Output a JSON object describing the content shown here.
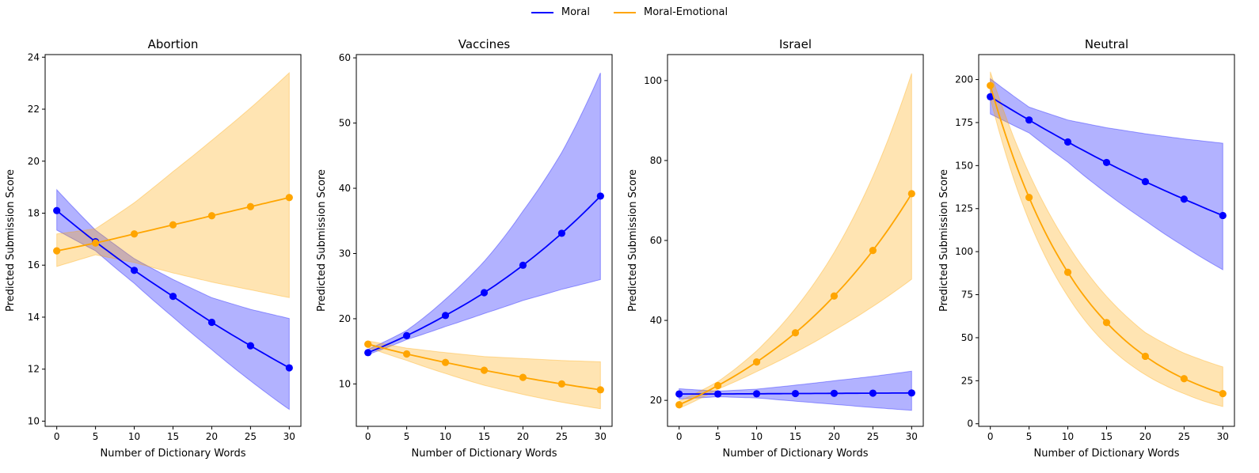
{
  "legend": {
    "items": [
      {
        "label": "Moral",
        "color": "#0000ff"
      },
      {
        "label": "Moral-Emotional",
        "color": "#ffa500"
      }
    ]
  },
  "colors": {
    "moral": "#0000ff",
    "moral_emotional": "#ffa500"
  },
  "chart_data": [
    {
      "type": "line",
      "title": "Abortion",
      "xlabel": "Number of Dictionary Words",
      "ylabel": "Predicted Submission Score",
      "xlim": [
        -1.5,
        31.5
      ],
      "ylim": [
        9.8,
        24.1
      ],
      "xticks": [
        0,
        5,
        10,
        15,
        20,
        25,
        30
      ],
      "yticks": [
        10,
        12,
        14,
        16,
        18,
        20,
        22,
        24
      ],
      "x": [
        0,
        5,
        10,
        15,
        20,
        25,
        30
      ],
      "series": [
        {
          "name": "Moral",
          "color": "#0000ff",
          "values": [
            18.1,
            16.9,
            15.8,
            14.8,
            13.8,
            12.9,
            12.05
          ],
          "lower": [
            17.35,
            16.55,
            15.3,
            14.0,
            12.75,
            11.55,
            10.45
          ],
          "upper": [
            18.9,
            17.35,
            16.25,
            15.45,
            14.75,
            14.3,
            13.95
          ]
        },
        {
          "name": "Moral-Emotional",
          "color": "#ffa500",
          "values": [
            16.55,
            16.85,
            17.2,
            17.55,
            17.9,
            18.25,
            18.6
          ],
          "lower": [
            15.95,
            16.4,
            16.1,
            15.7,
            15.35,
            15.05,
            14.75
          ],
          "upper": [
            17.2,
            17.4,
            18.4,
            19.6,
            20.8,
            22.05,
            23.4
          ]
        }
      ]
    },
    {
      "type": "line",
      "title": "Vaccines",
      "xlabel": "Number of Dictionary Words",
      "ylabel": "Predicted Submission Score",
      "xlim": [
        -1.5,
        31.5
      ],
      "ylim": [
        3.5,
        60.5
      ],
      "xticks": [
        0,
        5,
        10,
        15,
        20,
        25,
        30
      ],
      "yticks": [
        10,
        20,
        30,
        40,
        50,
        60
      ],
      "x": [
        0,
        5,
        10,
        15,
        20,
        25,
        30
      ],
      "series": [
        {
          "name": "Moral",
          "color": "#0000ff",
          "values": [
            14.8,
            17.4,
            20.5,
            24.0,
            28.2,
            33.1,
            38.8
          ],
          "lower": [
            14.5,
            16.8,
            18.8,
            20.8,
            22.8,
            24.5,
            26.0
          ],
          "upper": [
            15.3,
            18.2,
            23.0,
            28.8,
            36.5,
            45.5,
            57.7
          ]
        },
        {
          "name": "Moral-Emotional",
          "color": "#ffa500",
          "values": [
            16.1,
            14.6,
            13.3,
            12.1,
            11.0,
            10.0,
            9.1
          ],
          "lower": [
            15.6,
            13.6,
            11.6,
            9.8,
            8.4,
            7.2,
            6.2
          ],
          "upper": [
            16.6,
            15.5,
            14.8,
            14.2,
            13.9,
            13.6,
            13.4
          ]
        }
      ]
    },
    {
      "type": "line",
      "title": "Israel",
      "xlabel": "Number of Dictionary Words",
      "ylabel": "Predicted Submission Score",
      "xlim": [
        -1.5,
        31.5
      ],
      "ylim": [
        13.5,
        106.5
      ],
      "xticks": [
        0,
        5,
        10,
        15,
        20,
        25,
        30
      ],
      "yticks": [
        20,
        40,
        60,
        80,
        100
      ],
      "x": [
        0,
        5,
        10,
        15,
        20,
        25,
        30
      ],
      "series": [
        {
          "name": "Moral",
          "color": "#0000ff",
          "values": [
            21.6,
            21.6,
            21.65,
            21.7,
            21.75,
            21.8,
            21.85
          ],
          "lower": [
            20.3,
            20.9,
            20.6,
            19.8,
            19.0,
            18.2,
            17.5
          ],
          "upper": [
            22.9,
            22.3,
            22.8,
            23.8,
            24.9,
            26.0,
            27.3
          ]
        },
        {
          "name": "Moral-Emotional",
          "color": "#ffa500",
          "values": [
            18.9,
            23.7,
            29.6,
            36.9,
            46.1,
            57.5,
            71.7
          ],
          "lower": [
            18.0,
            22.8,
            27.2,
            32.0,
            37.5,
            43.5,
            50.3
          ],
          "upper": [
            19.8,
            24.7,
            32.4,
            43.0,
            57.0,
            76.0,
            101.8
          ]
        }
      ]
    },
    {
      "type": "line",
      "title": "Neutral",
      "xlabel": "Number of Dictionary Words",
      "ylabel": "Predicted Submission Score",
      "xlim": [
        -1.5,
        31.5
      ],
      "ylim": [
        -1.5,
        214.5
      ],
      "xticks": [
        0,
        5,
        10,
        15,
        20,
        25,
        30
      ],
      "yticks": [
        0,
        25,
        50,
        75,
        100,
        125,
        150,
        175,
        200
      ],
      "x": [
        0,
        5,
        10,
        15,
        20,
        25,
        30
      ],
      "series": [
        {
          "name": "Moral",
          "color": "#0000ff",
          "values": [
            190.0,
            176.5,
            163.7,
            151.8,
            140.7,
            130.5,
            121.0
          ],
          "lower": [
            180.0,
            169.0,
            152.0,
            134.0,
            118.0,
            103.0,
            89.5
          ],
          "upper": [
            200.5,
            184.0,
            176.5,
            172.0,
            168.5,
            165.5,
            163.0
          ]
        },
        {
          "name": "Moral-Emotional",
          "color": "#ffa500",
          "values": [
            196.5,
            131.5,
            88.0,
            58.8,
            39.2,
            26.2,
            17.5
          ],
          "lower": [
            189.0,
            118.0,
            74.0,
            46.0,
            28.5,
            17.5,
            10.0
          ],
          "upper": [
            204.5,
            145.5,
            104.0,
            74.0,
            53.0,
            41.0,
            33.0
          ]
        }
      ]
    }
  ]
}
